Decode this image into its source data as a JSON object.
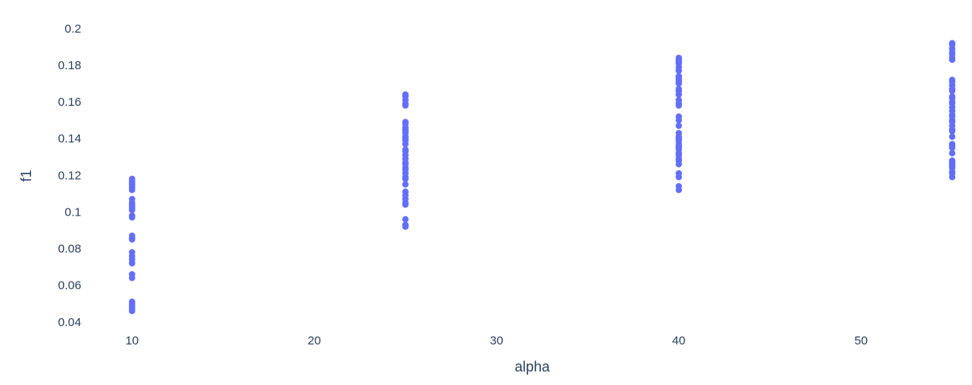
{
  "chart_data": {
    "type": "scatter",
    "title": "",
    "xlabel": "alpha",
    "ylabel": "f1",
    "xlim": [
      8,
      56
    ],
    "ylim": [
      0.036,
      0.206
    ],
    "x_ticks": [
      10,
      20,
      30,
      40,
      50
    ],
    "y_ticks": [
      0.04,
      0.06,
      0.08,
      0.1,
      0.12,
      0.14,
      0.16,
      0.18,
      0.2
    ],
    "x_tick_labels": [
      "10",
      "20",
      "30",
      "40",
      "50"
    ],
    "y_tick_labels": [
      "0.04",
      "0.06",
      "0.08",
      "0.1",
      "0.12",
      "0.14",
      "0.16",
      "0.18",
      "0.2"
    ],
    "grid": false,
    "legend": "none",
    "marker_color": "#636efa",
    "series": [
      {
        "x": [
          10,
          10,
          10,
          10,
          10,
          10,
          10,
          10,
          10,
          10,
          10,
          10,
          10,
          10,
          10,
          10,
          10,
          10,
          10,
          10,
          10,
          10,
          10,
          10,
          10,
          10,
          10,
          10,
          10,
          10
        ],
        "y": [
          0.046,
          0.047,
          0.048,
          0.049,
          0.05,
          0.051,
          0.064,
          0.066,
          0.072,
          0.074,
          0.076,
          0.078,
          0.085,
          0.086,
          0.087,
          0.097,
          0.098,
          0.101,
          0.102,
          0.103,
          0.104,
          0.105,
          0.107,
          0.112,
          0.113,
          0.114,
          0.115,
          0.116,
          0.117,
          0.118
        ]
      },
      {
        "x": [
          25,
          25,
          25,
          25,
          25,
          25,
          25,
          25,
          25,
          25,
          25,
          25,
          25,
          25,
          25,
          25,
          25,
          25,
          25,
          25,
          25,
          25,
          25,
          25,
          25,
          25,
          25,
          25,
          25,
          25,
          25,
          25,
          25,
          25,
          25
        ],
        "y": [
          0.092,
          0.093,
          0.096,
          0.104,
          0.105,
          0.107,
          0.109,
          0.111,
          0.115,
          0.118,
          0.119,
          0.121,
          0.123,
          0.124,
          0.126,
          0.127,
          0.129,
          0.131,
          0.133,
          0.134,
          0.137,
          0.139,
          0.14,
          0.141,
          0.143,
          0.144,
          0.145,
          0.146,
          0.148,
          0.149,
          0.158,
          0.159,
          0.161,
          0.163,
          0.164
        ]
      },
      {
        "x": [
          40,
          40,
          40,
          40,
          40,
          40,
          40,
          40,
          40,
          40,
          40,
          40,
          40,
          40,
          40,
          40,
          40,
          40,
          40,
          40,
          40,
          40,
          40,
          40,
          40,
          40,
          40,
          40,
          40,
          40,
          40,
          40,
          40,
          40,
          40,
          40,
          40
        ],
        "y": [
          0.112,
          0.114,
          0.119,
          0.121,
          0.126,
          0.128,
          0.129,
          0.131,
          0.132,
          0.134,
          0.135,
          0.136,
          0.137,
          0.139,
          0.14,
          0.141,
          0.143,
          0.147,
          0.15,
          0.152,
          0.158,
          0.159,
          0.161,
          0.164,
          0.166,
          0.167,
          0.17,
          0.171,
          0.172,
          0.173,
          0.174,
          0.177,
          0.179,
          0.181,
          0.182,
          0.183,
          0.184
        ]
      },
      {
        "x": [
          55,
          55,
          55,
          55,
          55,
          55,
          55,
          55,
          55,
          55,
          55,
          55,
          55,
          55,
          55,
          55,
          55,
          55,
          55,
          55,
          55,
          55,
          55,
          55,
          55,
          55,
          55,
          55,
          55,
          55,
          55,
          55,
          55,
          55,
          55,
          55,
          55,
          55
        ],
        "y": [
          0.119,
          0.121,
          0.122,
          0.124,
          0.125,
          0.126,
          0.127,
          0.128,
          0.132,
          0.135,
          0.136,
          0.137,
          0.141,
          0.144,
          0.145,
          0.147,
          0.149,
          0.15,
          0.152,
          0.153,
          0.155,
          0.157,
          0.159,
          0.16,
          0.162,
          0.163,
          0.166,
          0.167,
          0.169,
          0.171,
          0.172,
          0.183,
          0.184,
          0.186,
          0.187,
          0.189,
          0.191,
          0.192
        ]
      }
    ]
  }
}
